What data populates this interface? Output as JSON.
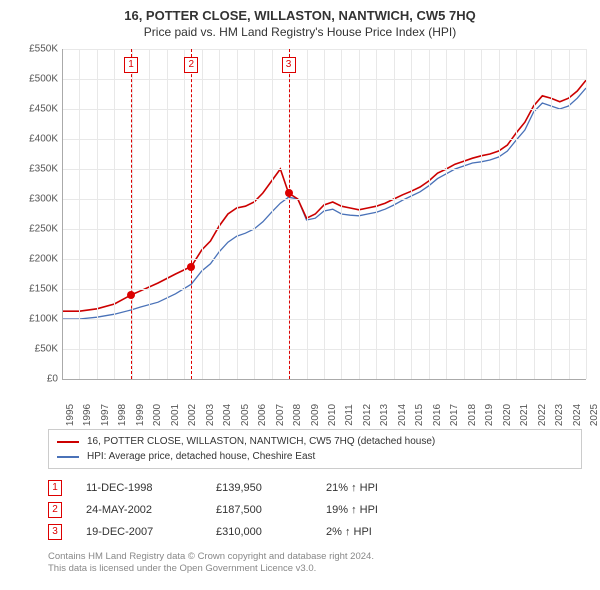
{
  "header": {
    "title": "16, POTTER CLOSE, WILLASTON, NANTWICH, CW5 7HQ",
    "subtitle": "Price paid vs. HM Land Registry's House Price Index (HPI)"
  },
  "chart": {
    "type": "line",
    "background_color": "#ffffff",
    "grid_color": "#e8e8e8",
    "axis_color": "#aaaaaa",
    "ylim": [
      0,
      550000
    ],
    "ytick_step": 50000,
    "ytick_labels": [
      "£0",
      "£50K",
      "£100K",
      "£150K",
      "£200K",
      "£250K",
      "£300K",
      "£350K",
      "£400K",
      "£450K",
      "£500K",
      "£550K"
    ],
    "xlim": [
      1995,
      2025
    ],
    "xticks": [
      1995,
      1996,
      1997,
      1998,
      1999,
      2000,
      2001,
      2002,
      2003,
      2004,
      2005,
      2006,
      2007,
      2008,
      2009,
      2010,
      2011,
      2012,
      2013,
      2014,
      2015,
      2016,
      2017,
      2018,
      2019,
      2020,
      2021,
      2022,
      2023,
      2024,
      2025
    ],
    "series": [
      {
        "name": "property",
        "label": "16, POTTER CLOSE, WILLASTON, NANTWICH, CW5 7HQ (detached house)",
        "color": "#cc0000",
        "line_width": 1.6,
        "points": [
          [
            1995.0,
            113000
          ],
          [
            1996.0,
            113000
          ],
          [
            1997.0,
            117000
          ],
          [
            1998.0,
            125000
          ],
          [
            1998.95,
            139950
          ],
          [
            1999.5,
            147000
          ],
          [
            2000.5,
            160000
          ],
          [
            2001.5,
            175000
          ],
          [
            2002.4,
            187500
          ],
          [
            2003.0,
            215000
          ],
          [
            2003.5,
            230000
          ],
          [
            2004.0,
            255000
          ],
          [
            2004.5,
            275000
          ],
          [
            2005.0,
            285000
          ],
          [
            2005.5,
            288000
          ],
          [
            2006.0,
            295000
          ],
          [
            2006.5,
            310000
          ],
          [
            2007.0,
            330000
          ],
          [
            2007.5,
            350000
          ],
          [
            2007.97,
            310000
          ],
          [
            2008.5,
            300000
          ],
          [
            2009.0,
            268000
          ],
          [
            2009.5,
            275000
          ],
          [
            2010.0,
            290000
          ],
          [
            2010.5,
            295000
          ],
          [
            2011.0,
            288000
          ],
          [
            2011.5,
            285000
          ],
          [
            2012.0,
            282000
          ],
          [
            2012.5,
            285000
          ],
          [
            2013.0,
            288000
          ],
          [
            2013.5,
            293000
          ],
          [
            2014.0,
            300000
          ],
          [
            2014.5,
            307000
          ],
          [
            2015.0,
            313000
          ],
          [
            2015.5,
            320000
          ],
          [
            2016.0,
            330000
          ],
          [
            2016.5,
            343000
          ],
          [
            2017.0,
            350000
          ],
          [
            2017.5,
            358000
          ],
          [
            2018.0,
            363000
          ],
          [
            2018.5,
            368000
          ],
          [
            2019.0,
            372000
          ],
          [
            2019.5,
            375000
          ],
          [
            2020.0,
            380000
          ],
          [
            2020.5,
            390000
          ],
          [
            2021.0,
            410000
          ],
          [
            2021.5,
            428000
          ],
          [
            2022.0,
            455000
          ],
          [
            2022.5,
            472000
          ],
          [
            2023.0,
            468000
          ],
          [
            2023.5,
            462000
          ],
          [
            2024.0,
            468000
          ],
          [
            2024.5,
            480000
          ],
          [
            2025.0,
            498000
          ]
        ]
      },
      {
        "name": "hpi",
        "label": "HPI: Average price, detached house, Cheshire East",
        "color": "#4a72b8",
        "line_width": 1.3,
        "points": [
          [
            1995.0,
            100000
          ],
          [
            1996.0,
            100000
          ],
          [
            1997.0,
            103000
          ],
          [
            1998.0,
            108000
          ],
          [
            1998.95,
            115000
          ],
          [
            1999.5,
            120000
          ],
          [
            2000.5,
            128000
          ],
          [
            2001.5,
            142000
          ],
          [
            2002.4,
            158000
          ],
          [
            2003.0,
            180000
          ],
          [
            2003.5,
            192000
          ],
          [
            2004.0,
            212000
          ],
          [
            2004.5,
            228000
          ],
          [
            2005.0,
            238000
          ],
          [
            2005.5,
            243000
          ],
          [
            2006.0,
            250000
          ],
          [
            2006.5,
            262000
          ],
          [
            2007.0,
            278000
          ],
          [
            2007.5,
            293000
          ],
          [
            2007.97,
            303000
          ],
          [
            2008.5,
            300000
          ],
          [
            2009.0,
            265000
          ],
          [
            2009.5,
            268000
          ],
          [
            2010.0,
            280000
          ],
          [
            2010.5,
            283000
          ],
          [
            2011.0,
            275000
          ],
          [
            2011.5,
            273000
          ],
          [
            2012.0,
            272000
          ],
          [
            2012.5,
            275000
          ],
          [
            2013.0,
            278000
          ],
          [
            2013.5,
            283000
          ],
          [
            2014.0,
            290000
          ],
          [
            2014.5,
            298000
          ],
          [
            2015.0,
            305000
          ],
          [
            2015.5,
            312000
          ],
          [
            2016.0,
            322000
          ],
          [
            2016.5,
            334000
          ],
          [
            2017.0,
            342000
          ],
          [
            2017.5,
            350000
          ],
          [
            2018.0,
            355000
          ],
          [
            2018.5,
            360000
          ],
          [
            2019.0,
            362000
          ],
          [
            2019.5,
            365000
          ],
          [
            2020.0,
            370000
          ],
          [
            2020.5,
            380000
          ],
          [
            2021.0,
            398000
          ],
          [
            2021.5,
            415000
          ],
          [
            2022.0,
            445000
          ],
          [
            2022.5,
            460000
          ],
          [
            2023.0,
            455000
          ],
          [
            2023.5,
            450000
          ],
          [
            2024.0,
            455000
          ],
          [
            2024.5,
            468000
          ],
          [
            2025.0,
            485000
          ]
        ]
      }
    ],
    "sales": [
      {
        "idx": "1",
        "year": 1998.95,
        "price": 139950
      },
      {
        "idx": "2",
        "year": 2002.4,
        "price": 187500
      },
      {
        "idx": "3",
        "year": 2007.97,
        "price": 310000
      }
    ],
    "sale_marker_color": "#d00000",
    "sale_line_dashed": true
  },
  "legend": {
    "items": [
      {
        "color": "#cc0000",
        "label": "16, POTTER CLOSE, WILLASTON, NANTWICH, CW5 7HQ (detached house)"
      },
      {
        "color": "#4a72b8",
        "label": "HPI: Average price, detached house, Cheshire East"
      }
    ]
  },
  "sales_table": {
    "rows": [
      {
        "idx": "1",
        "date": "11-DEC-1998",
        "price": "£139,950",
        "diff": "21% ↑ HPI"
      },
      {
        "idx": "2",
        "date": "24-MAY-2002",
        "price": "£187,500",
        "diff": "19% ↑ HPI"
      },
      {
        "idx": "3",
        "date": "19-DEC-2007",
        "price": "£310,000",
        "diff": "2% ↑ HPI"
      }
    ]
  },
  "attribution": {
    "line1": "Contains HM Land Registry data © Crown copyright and database right 2024.",
    "line2": "This data is licensed under the Open Government Licence v3.0."
  }
}
